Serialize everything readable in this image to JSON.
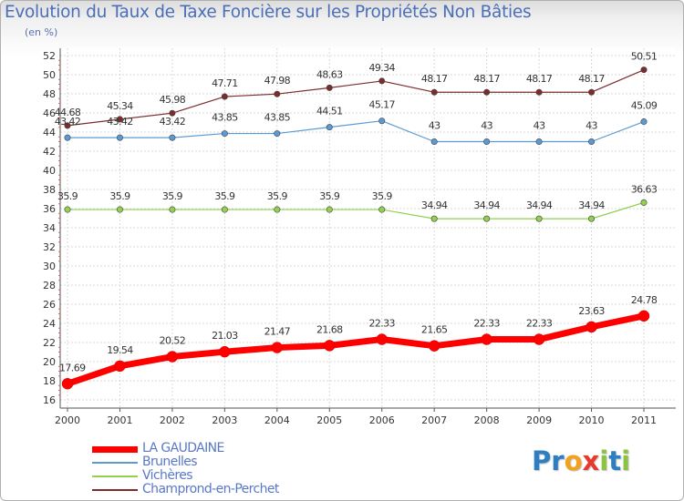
{
  "title": "Evolution du Taux de Taxe Foncière sur les Propriétés Non Bâties",
  "unit_label": "(en %)",
  "logo": {
    "text": "Proxiti",
    "letters": [
      {
        "ch": "P",
        "color": "#2e7fc1"
      },
      {
        "ch": "r",
        "color": "#2e7fc1"
      },
      {
        "ch": "o",
        "color": "#f2a21c"
      },
      {
        "ch": "x",
        "color": "#e8392e"
      },
      {
        "ch": "i",
        "color": "#8bc43f"
      },
      {
        "ch": "t",
        "color": "#2e7fc1"
      },
      {
        "ch": "i",
        "color": "#8bc43f"
      }
    ]
  },
  "chart_data": {
    "type": "line",
    "title": "Evolution du Taux de Taxe Foncière sur les Propriétés Non Bâties",
    "ylabel": "(en %)",
    "xlabel": "",
    "x": [
      "2000",
      "2001",
      "2002",
      "2003",
      "2004",
      "2005",
      "2006",
      "2007",
      "2008",
      "2009",
      "2010",
      "2011"
    ],
    "ylim": [
      16,
      52
    ],
    "yticks": [
      "16",
      "18",
      "20",
      "22",
      "24",
      "26",
      "28",
      "30",
      "32",
      "34",
      "36",
      "38",
      "40",
      "42",
      "44",
      "46",
      "48",
      "50",
      "52"
    ],
    "grid": true,
    "legend_position": "bottom-left",
    "series": [
      {
        "name": "LA GAUDAINE",
        "color": "#ff0000",
        "values": [
          17.69,
          19.54,
          20.52,
          21.03,
          21.47,
          21.68,
          22.33,
          21.65,
          22.33,
          22.33,
          23.63,
          24.78
        ],
        "labels": [
          "17.69",
          "19.54",
          "20.52",
          "21.03",
          "21.47",
          "21.68",
          "22.33",
          "21.65",
          "22.33",
          "22.33",
          "23.63",
          "24.78"
        ]
      },
      {
        "name": "Brunelles",
        "color": "#5b9bd5",
        "values": [
          43.42,
          43.42,
          43.42,
          43.85,
          43.85,
          44.51,
          45.17,
          43,
          43,
          43,
          43,
          45.09
        ],
        "labels": [
          "43.42",
          "43.42",
          "43.42",
          "43.85",
          "43.85",
          "44.51",
          "45.17",
          "43",
          "43",
          "43",
          "43",
          "45.09"
        ]
      },
      {
        "name": "Vichères",
        "color": "#92d050",
        "values": [
          35.9,
          35.9,
          35.9,
          35.9,
          35.9,
          35.9,
          35.9,
          34.94,
          34.94,
          34.94,
          34.94,
          36.63
        ],
        "labels": [
          "35.9",
          "35.9",
          "35.9",
          "35.9",
          "35.9",
          "35.9",
          "35.9",
          "34.94",
          "34.94",
          "34.94",
          "34.94",
          "36.63"
        ]
      },
      {
        "name": "Champrond-en-Perchet",
        "color": "#7b2c2c",
        "values": [
          44.68,
          45.34,
          45.98,
          47.71,
          47.98,
          48.63,
          49.34,
          48.17,
          48.17,
          48.17,
          48.17,
          50.51
        ],
        "labels": [
          "44.68",
          "45.34",
          "45.98",
          "47.71",
          "47.98",
          "48.63",
          "49.34",
          "48.17",
          "48.17",
          "48.17",
          "48.17",
          "50.51"
        ]
      }
    ]
  }
}
